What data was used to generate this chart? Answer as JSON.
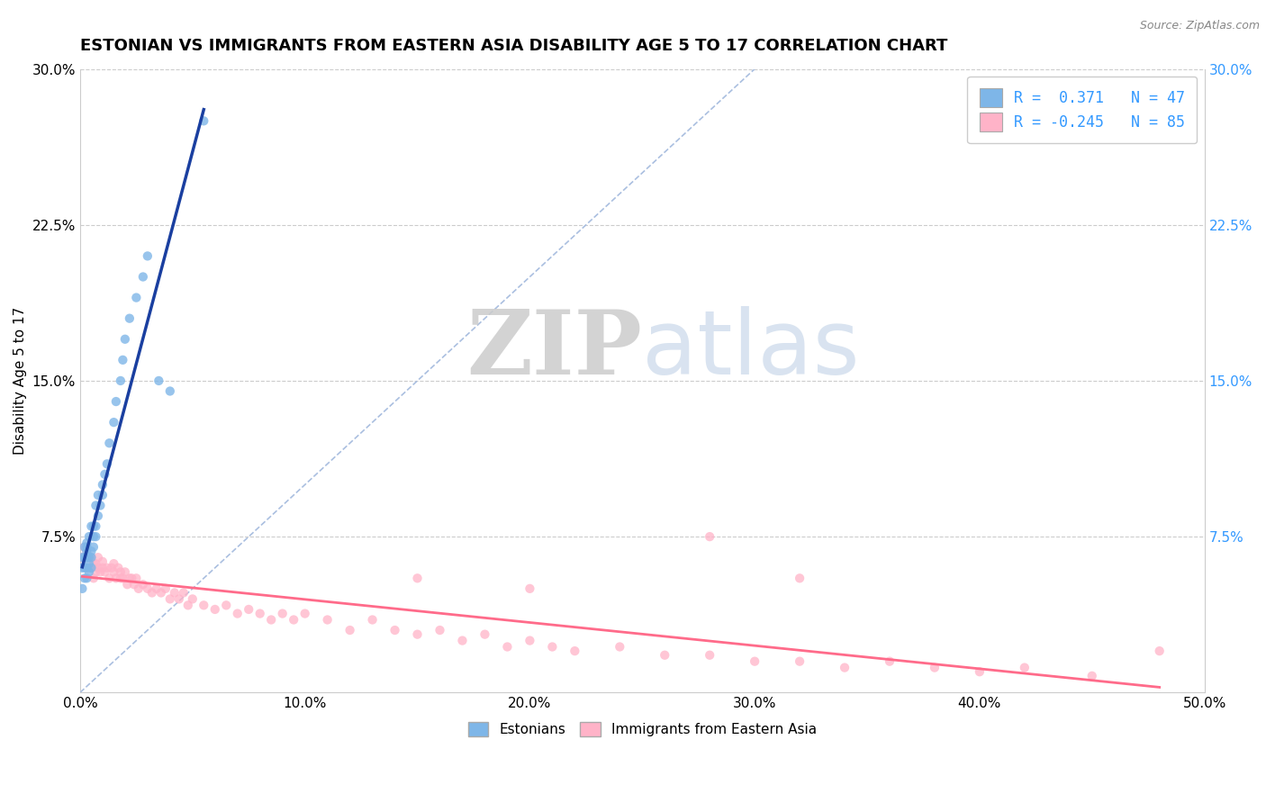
{
  "title": "ESTONIAN VS IMMIGRANTS FROM EASTERN ASIA DISABILITY AGE 5 TO 17 CORRELATION CHART",
  "source": "Source: ZipAtlas.com",
  "ylabel": "Disability Age 5 to 17",
  "xlim": [
    0.0,
    0.5
  ],
  "ylim": [
    0.0,
    0.3
  ],
  "xticks": [
    0.0,
    0.1,
    0.2,
    0.3,
    0.4,
    0.5
  ],
  "xticklabels": [
    "0.0%",
    "10.0%",
    "20.0%",
    "30.0%",
    "40.0%",
    "50.0%"
  ],
  "yticks": [
    0.0,
    0.075,
    0.15,
    0.225,
    0.3
  ],
  "yticklabels_left": [
    "",
    "7.5%",
    "15.0%",
    "22.5%",
    "30.0%"
  ],
  "yticklabels_right": [
    "",
    "7.5%",
    "15.0%",
    "22.5%",
    "30.0%"
  ],
  "legend_line1": "R =  0.371   N = 47",
  "legend_line2": "R = -0.245   N = 85",
  "color_estonian": "#7EB6E8",
  "color_immigrant": "#FFB3C8",
  "color_estonian_line": "#1A3FA0",
  "color_immigrant_line": "#FF6B8A",
  "color_diagonal": "#AABFE0",
  "watermark_zip": "ZIP",
  "watermark_atlas": "atlas",
  "estonian_x": [
    0.001,
    0.001,
    0.001,
    0.002,
    0.002,
    0.002,
    0.002,
    0.003,
    0.003,
    0.003,
    0.003,
    0.003,
    0.003,
    0.004,
    0.004,
    0.004,
    0.004,
    0.005,
    0.005,
    0.005,
    0.005,
    0.006,
    0.006,
    0.006,
    0.007,
    0.007,
    0.007,
    0.008,
    0.008,
    0.009,
    0.01,
    0.01,
    0.011,
    0.012,
    0.013,
    0.015,
    0.016,
    0.018,
    0.019,
    0.02,
    0.022,
    0.025,
    0.028,
    0.03,
    0.035,
    0.04,
    0.055
  ],
  "estonian_y": [
    0.05,
    0.06,
    0.065,
    0.055,
    0.06,
    0.065,
    0.07,
    0.055,
    0.06,
    0.065,
    0.068,
    0.07,
    0.072,
    0.058,
    0.062,
    0.065,
    0.075,
    0.06,
    0.065,
    0.068,
    0.08,
    0.07,
    0.075,
    0.08,
    0.075,
    0.08,
    0.09,
    0.085,
    0.095,
    0.09,
    0.095,
    0.1,
    0.105,
    0.11,
    0.12,
    0.13,
    0.14,
    0.15,
    0.16,
    0.17,
    0.18,
    0.19,
    0.2,
    0.21,
    0.15,
    0.145,
    0.275
  ],
  "immigrant_x": [
    0.001,
    0.002,
    0.003,
    0.003,
    0.004,
    0.004,
    0.005,
    0.005,
    0.006,
    0.006,
    0.007,
    0.007,
    0.008,
    0.008,
    0.009,
    0.01,
    0.01,
    0.011,
    0.012,
    0.013,
    0.014,
    0.015,
    0.015,
    0.016,
    0.017,
    0.018,
    0.018,
    0.019,
    0.02,
    0.021,
    0.022,
    0.023,
    0.024,
    0.025,
    0.026,
    0.028,
    0.03,
    0.032,
    0.034,
    0.036,
    0.038,
    0.04,
    0.042,
    0.044,
    0.046,
    0.048,
    0.05,
    0.055,
    0.06,
    0.065,
    0.07,
    0.075,
    0.08,
    0.085,
    0.09,
    0.095,
    0.1,
    0.11,
    0.12,
    0.13,
    0.14,
    0.15,
    0.16,
    0.17,
    0.18,
    0.19,
    0.2,
    0.21,
    0.22,
    0.24,
    0.26,
    0.28,
    0.3,
    0.32,
    0.34,
    0.36,
    0.38,
    0.4,
    0.42,
    0.45,
    0.28,
    0.32,
    0.2,
    0.15,
    0.48
  ],
  "immigrant_y": [
    0.065,
    0.07,
    0.065,
    0.068,
    0.06,
    0.065,
    0.06,
    0.065,
    0.055,
    0.062,
    0.058,
    0.062,
    0.06,
    0.065,
    0.058,
    0.06,
    0.063,
    0.058,
    0.06,
    0.055,
    0.06,
    0.058,
    0.062,
    0.055,
    0.06,
    0.055,
    0.058,
    0.055,
    0.058,
    0.052,
    0.055,
    0.055,
    0.052,
    0.055,
    0.05,
    0.052,
    0.05,
    0.048,
    0.05,
    0.048,
    0.05,
    0.045,
    0.048,
    0.045,
    0.048,
    0.042,
    0.045,
    0.042,
    0.04,
    0.042,
    0.038,
    0.04,
    0.038,
    0.035,
    0.038,
    0.035,
    0.038,
    0.035,
    0.03,
    0.035,
    0.03,
    0.028,
    0.03,
    0.025,
    0.028,
    0.022,
    0.025,
    0.022,
    0.02,
    0.022,
    0.018,
    0.018,
    0.015,
    0.015,
    0.012,
    0.015,
    0.012,
    0.01,
    0.012,
    0.008,
    0.075,
    0.055,
    0.05,
    0.055,
    0.02
  ]
}
